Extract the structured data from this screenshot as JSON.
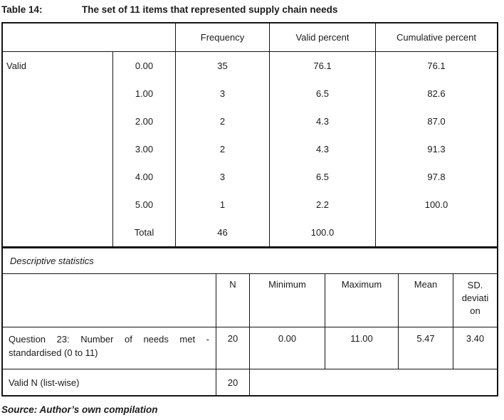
{
  "caption": {
    "label": "Table 14:",
    "title": "The set of 11 items that represented supply chain needs"
  },
  "frequency_table": {
    "columns": {
      "frequency": "Frequency",
      "valid_percent": "Valid percent",
      "cumulative_percent": "Cumulative percent"
    },
    "group_label": "Valid",
    "rows": [
      {
        "value": "0.00",
        "frequency": "35",
        "valid_percent": "76.1",
        "cumulative_percent": "76.1"
      },
      {
        "value": "1.00",
        "frequency": "3",
        "valid_percent": "6.5",
        "cumulative_percent": "82.6"
      },
      {
        "value": "2.00",
        "frequency": "2",
        "valid_percent": "4.3",
        "cumulative_percent": "87.0"
      },
      {
        "value": "3.00",
        "frequency": "2",
        "valid_percent": "4.3",
        "cumulative_percent": "91.3"
      },
      {
        "value": "4.00",
        "frequency": "3",
        "valid_percent": "6.5",
        "cumulative_percent": "97.8"
      },
      {
        "value": "5.00",
        "frequency": "1",
        "valid_percent": "2.2",
        "cumulative_percent": "100.0"
      },
      {
        "value": "Total",
        "frequency": "46",
        "valid_percent": "100.0",
        "cumulative_percent": ""
      }
    ]
  },
  "descriptive": {
    "section_label": "Descriptive statistics",
    "columns": {
      "n": "N",
      "minimum": "Minimum",
      "maximum": "Maximum",
      "mean": "Mean",
      "sd_line1": "SD.",
      "sd_line2": "deviati",
      "sd_line3": "on"
    },
    "question_row": {
      "label_line1": "Question 23: Number of needs met -",
      "label_line2": "standardised (0 to 11)",
      "n": "20",
      "minimum": "0.00",
      "maximum": "11.00",
      "mean": "5.47",
      "sd": "3.40"
    },
    "valid_n_row": {
      "label": "Valid N (list-wise)",
      "n": "20"
    }
  },
  "source_note": "Source: Author’s own compilation"
}
